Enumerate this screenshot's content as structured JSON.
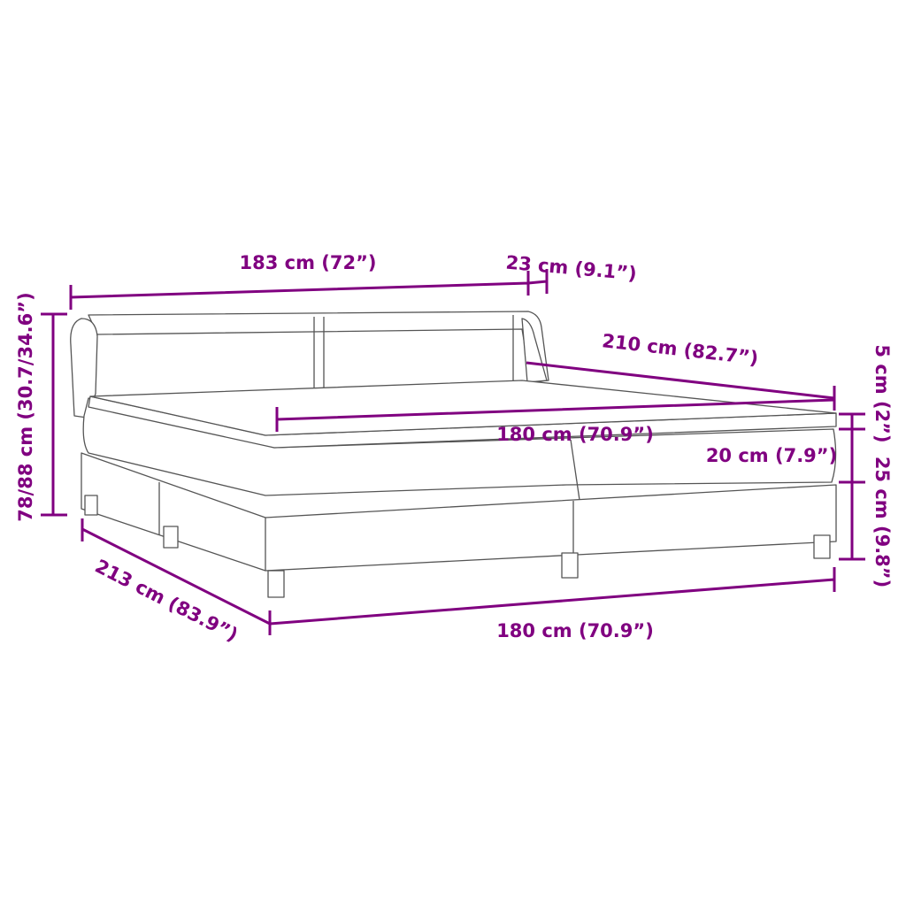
{
  "accent_color": "#800080",
  "dimensions": {
    "headboard_width": "183 cm (72”)",
    "headboard_depth": "23 cm (9.1”)",
    "mattress_length": "210 cm (82.7”)",
    "mattress_width": "180 cm (70.9”)",
    "topper_height": "5 cm (2”)",
    "mattress_height": "20 cm (7.9”)",
    "base_height": "25 cm (9.8”)",
    "total_height": "78/88 cm (30.7/34.6”)",
    "total_length": "213 cm (83.9”)",
    "base_width": "180 cm (70.9”)"
  }
}
